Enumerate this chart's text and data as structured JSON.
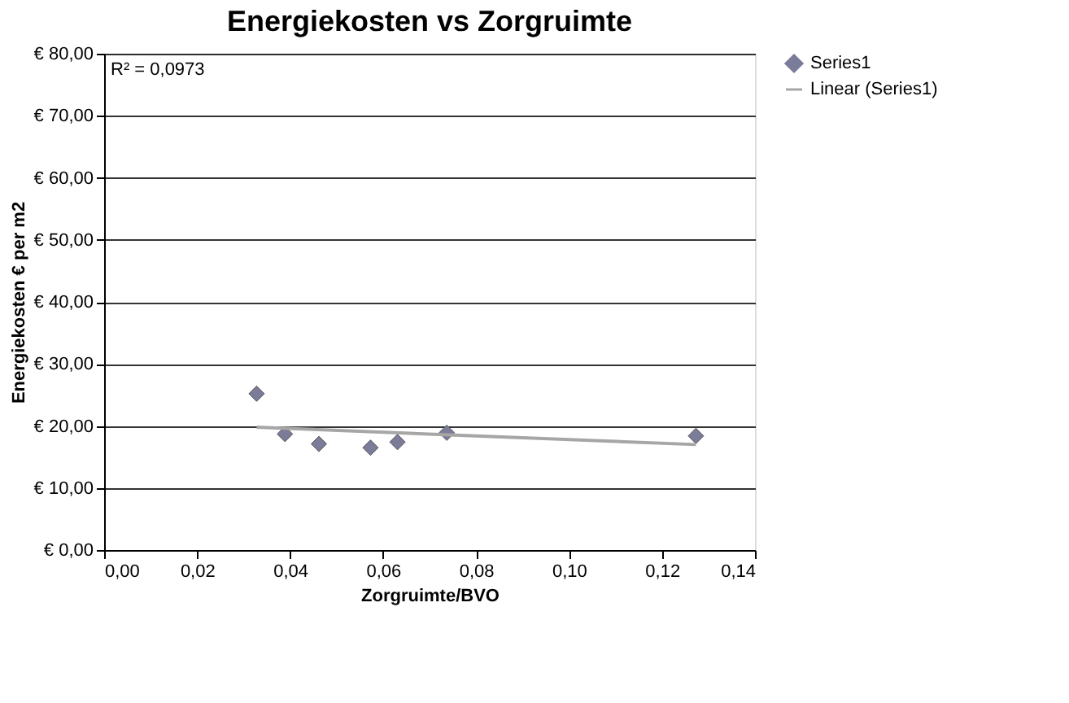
{
  "chart_data": {
    "type": "scatter",
    "title": "Energiekosten vs Zorgruimte",
    "xlabel": "Zorgruimte/BVO",
    "ylabel": "Energiekosten € per m2",
    "xlim": [
      0,
      0.14
    ],
    "xticks": [
      {
        "value": 0,
        "label": "0,00"
      },
      {
        "value": 0.02,
        "label": "0,02"
      },
      {
        "value": 0.04,
        "label": "0,04"
      },
      {
        "value": 0.06,
        "label": "0,06"
      },
      {
        "value": 0.08,
        "label": "0,08"
      },
      {
        "value": 0.1,
        "label": "0,10"
      },
      {
        "value": 0.12,
        "label": "0,12"
      },
      {
        "value": 0.14,
        "label": "0,14"
      }
    ],
    "ylim": [
      0,
      80
    ],
    "yticks": [
      {
        "value": 0,
        "label": "€ 0,00"
      },
      {
        "value": 10,
        "label": "€ 10,00"
      },
      {
        "value": 20,
        "label": "€ 20,00"
      },
      {
        "value": 30,
        "label": "€ 30,00"
      },
      {
        "value": 40,
        "label": "€ 40,00"
      },
      {
        "value": 50,
        "label": "€ 50,00"
      },
      {
        "value": 60,
        "label": "€ 60,00"
      },
      {
        "value": 70,
        "label": "€ 70,00"
      },
      {
        "value": 80,
        "label": "€ 80,00"
      }
    ],
    "grid": "y",
    "legend": "right",
    "annotations": [
      "R² = 0,0973"
    ],
    "series": [
      {
        "name": "Series1",
        "type": "scatter",
        "marker": "diamond",
        "color": "#7b7b9a",
        "x": [
          0.0328,
          0.0389,
          0.0462,
          0.0573,
          0.0631,
          0.0737,
          0.1273
        ],
        "values": [
          25.2,
          18.7,
          17.1,
          16.5,
          17.4,
          18.9,
          18.4
        ]
      },
      {
        "name": "Linear (Series1)",
        "type": "line",
        "line_style": "solid",
        "color": "#a6a6a6",
        "x": [
          0.0328,
          0.1273
        ],
        "values": [
          19.8,
          17.0
        ]
      }
    ]
  }
}
